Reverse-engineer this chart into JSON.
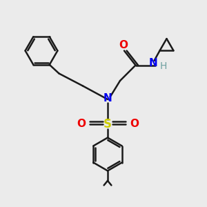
{
  "bg_color": "#ebebeb",
  "bond_color": "#1a1a1a",
  "N_color": "#0000ee",
  "O_color": "#ee0000",
  "S_color": "#cccc00",
  "H_color": "#6fa0a0",
  "line_width": 1.8,
  "figsize": [
    3.0,
    3.0
  ],
  "dpi": 100,
  "xlim": [
    0,
    10
  ],
  "ylim": [
    0,
    10
  ]
}
